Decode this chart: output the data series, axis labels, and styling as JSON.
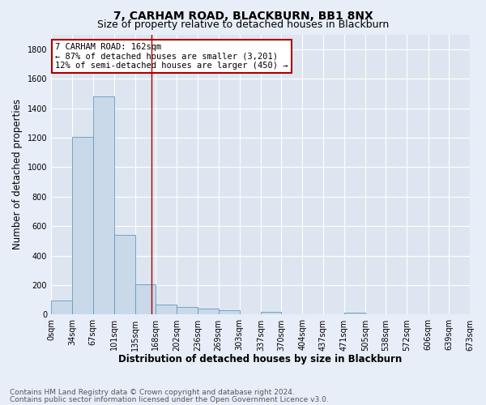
{
  "title": "7, CARHAM ROAD, BLACKBURN, BB1 8NX",
  "subtitle": "Size of property relative to detached houses in Blackburn",
  "xlabel": "Distribution of detached houses by size in Blackburn",
  "ylabel": "Number of detached properties",
  "footnote1": "Contains HM Land Registry data © Crown copyright and database right 2024.",
  "footnote2": "Contains public sector information licensed under the Open Government Licence v3.0.",
  "bar_color": "#c9d9ea",
  "bar_edge_color": "#6699bb",
  "annotation_box_text": "7 CARHAM ROAD: 162sqm\n← 87% of detached houses are smaller (3,201)\n12% of semi-detached houses are larger (450) →",
  "annotation_box_color": "#ffffff",
  "annotation_box_edge_color": "#aa0000",
  "vline_x": 162,
  "vline_color": "#aa0000",
  "bin_edges": [
    0,
    34,
    67,
    101,
    135,
    168,
    202,
    236,
    269,
    303,
    337,
    370,
    404,
    437,
    471,
    505,
    538,
    572,
    606,
    639,
    673
  ],
  "bin_labels": [
    "0sqm",
    "34sqm",
    "67sqm",
    "101sqm",
    "135sqm",
    "168sqm",
    "202sqm",
    "236sqm",
    "269sqm",
    "303sqm",
    "337sqm",
    "370sqm",
    "404sqm",
    "437sqm",
    "471sqm",
    "505sqm",
    "538sqm",
    "572sqm",
    "606sqm",
    "639sqm",
    "673sqm"
  ],
  "bar_heights": [
    95,
    1205,
    1480,
    540,
    205,
    70,
    50,
    42,
    30,
    0,
    20,
    0,
    0,
    0,
    15,
    0,
    0,
    0,
    0,
    0
  ],
  "ylim": [
    0,
    1900
  ],
  "yticks": [
    0,
    200,
    400,
    600,
    800,
    1000,
    1200,
    1400,
    1600,
    1800
  ],
  "fig_bg_color": "#e8eef8",
  "plot_bg_color": "#dde6f0",
  "grid_color": "#ffffff",
  "title_fontsize": 10,
  "subtitle_fontsize": 9,
  "axis_label_fontsize": 8.5,
  "tick_fontsize": 7,
  "annotation_fontsize": 7.5,
  "footnote_fontsize": 6.5
}
